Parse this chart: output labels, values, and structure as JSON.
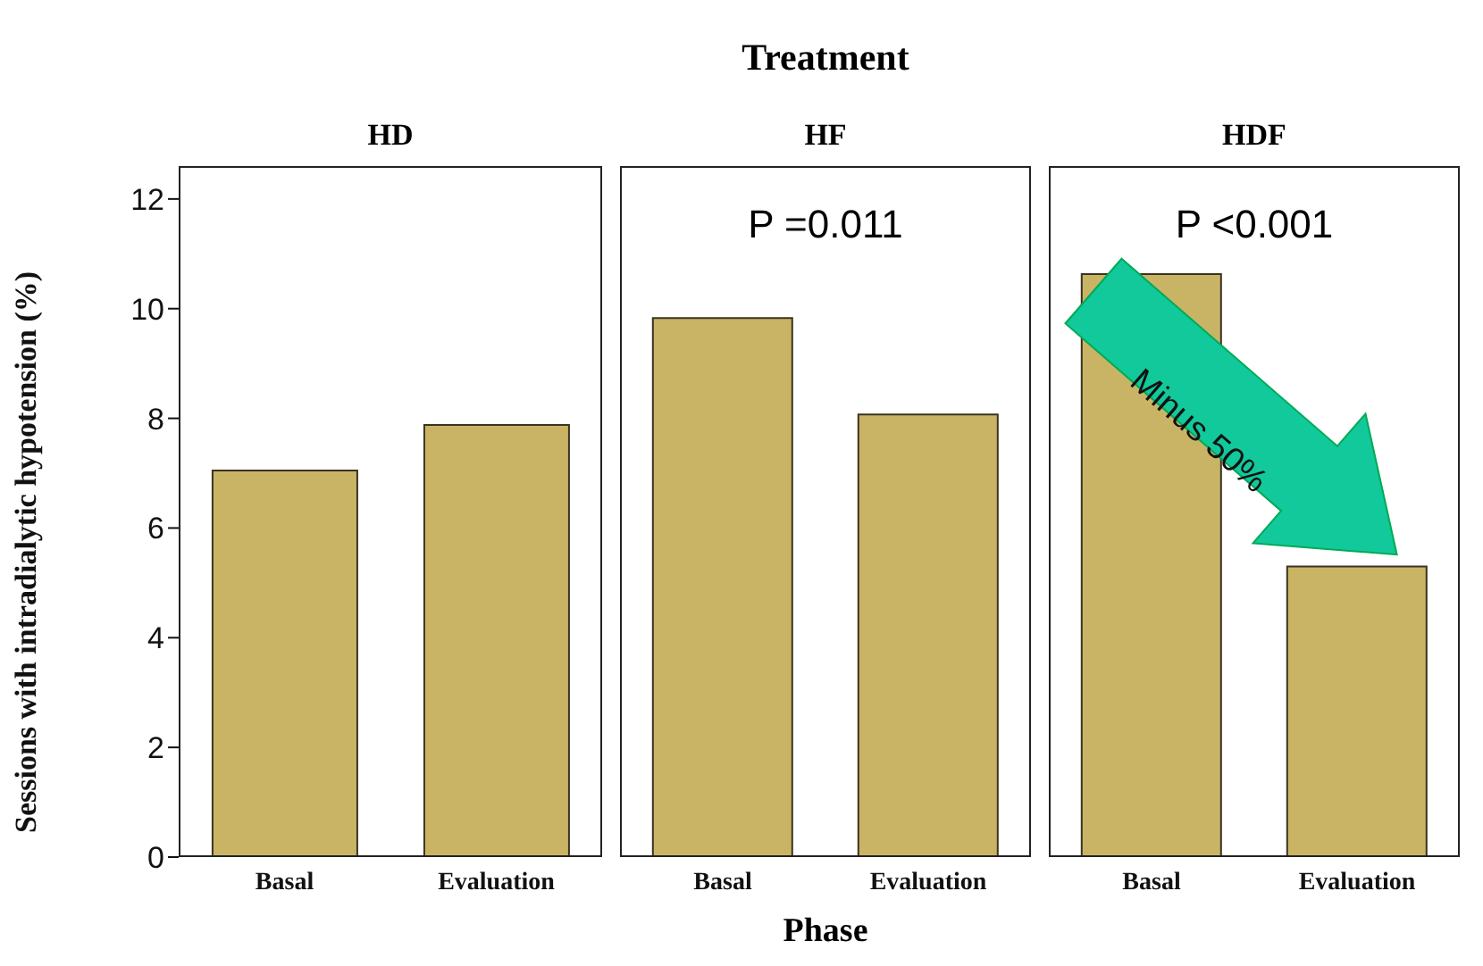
{
  "chart_data": [
    {
      "type": "bar",
      "subtitle": "HD",
      "ylabel": "Sessions with intradialytic hypotension (%)",
      "categories": [
        "Basal",
        "Evaluation"
      ],
      "values": [
        7.05,
        7.88
      ],
      "color": "#c9b466",
      "ylim": [
        0,
        12.6
      ],
      "yticks": [
        0,
        2,
        4,
        6,
        8,
        10,
        12
      ],
      "grid": false
    },
    {
      "type": "bar",
      "title": "Treatment",
      "subtitle": "HF",
      "xlabel": "Phase",
      "categories": [
        "Basal",
        "Evaluation"
      ],
      "values": [
        9.83,
        8.07
      ],
      "color": "#c9b466",
      "ylim": [
        0,
        12.6
      ],
      "yticks": [
        0,
        2,
        4,
        6,
        8,
        10,
        12
      ],
      "tick_labels": "x",
      "grid": false,
      "annotations": [
        "P =0.011"
      ]
    },
    {
      "type": "bar",
      "subtitle": "HDF",
      "categories": [
        "Basal",
        "Evaluation"
      ],
      "values": [
        10.63,
        5.3
      ],
      "color": "#c9b466",
      "ylim": [
        0,
        12.6
      ],
      "yticks": [
        0,
        2,
        4,
        6,
        8,
        10,
        12
      ],
      "tick_labels": "x",
      "grid": false,
      "annotations": [
        "P <0.001",
        "Minus 50%"
      ]
    }
  ]
}
